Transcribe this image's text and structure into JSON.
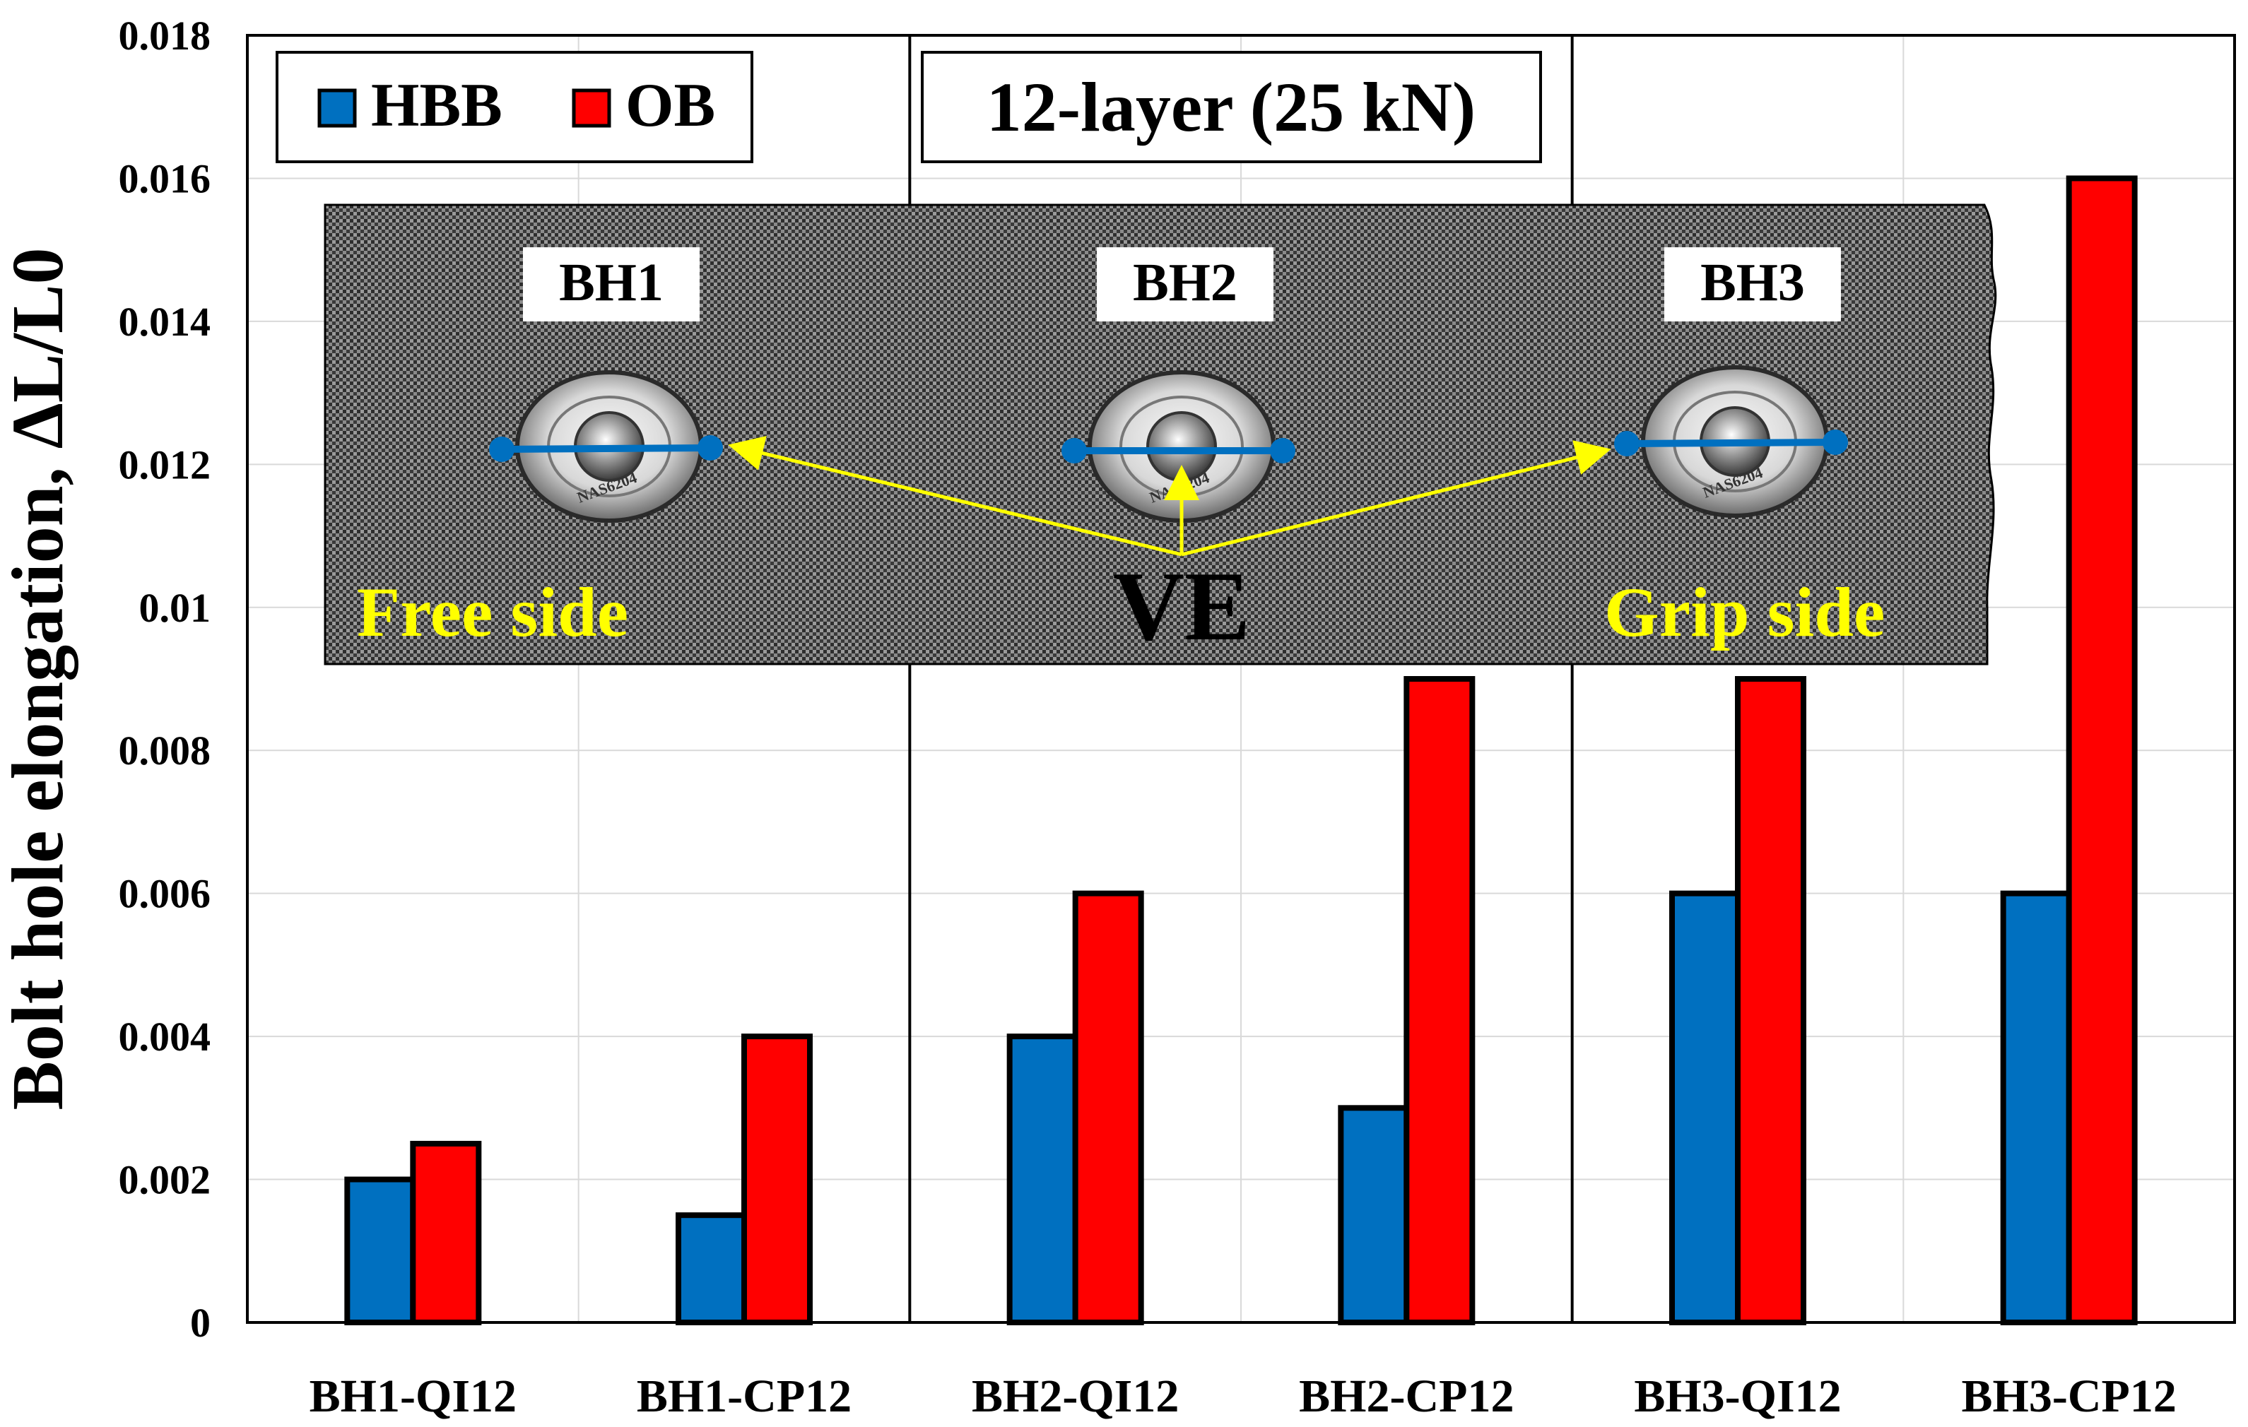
{
  "chart_data": {
    "type": "bar",
    "title": "12-layer (25 kN)",
    "xlabel": "",
    "ylabel": "Bolt hole elongation, ΔL/L0",
    "ylim": [
      0,
      0.018
    ],
    "yticks": [
      "0",
      "0.002",
      "0.004",
      "0.006",
      "0.008",
      "0.01",
      "0.012",
      "0.014",
      "0.016",
      "0.018"
    ],
    "ytick_values": [
      0,
      0.002,
      0.004,
      0.006,
      0.008,
      0.01,
      0.012,
      0.014,
      0.016,
      0.018
    ],
    "grid": true,
    "legend_position": "top-left",
    "categories": [
      "BH1-QI12",
      "BH1-CP12",
      "BH2-QI12",
      "BH2-CP12",
      "BH3-QI12",
      "BH3-CP12"
    ],
    "series": [
      {
        "name": "HBB",
        "color": "#0070C0",
        "values": [
          0.002,
          0.0015,
          0.004,
          0.003,
          0.006,
          0.006
        ]
      },
      {
        "name": "OB",
        "color": "#FF0000",
        "values": [
          0.0025,
          0.004,
          0.006,
          0.009,
          0.009,
          0.016
        ]
      }
    ],
    "inset_photo": {
      "hole_labels": [
        "BH1",
        "BH2",
        "BH3"
      ],
      "bolt_marking": "NAS6204",
      "annotations": {
        "free_side": "Free side",
        "grip_side": "Grip side",
        "ve": "VE"
      },
      "colors": {
        "annotation": "#FFFF00",
        "measure_line": "#0070C0",
        "arrow": "#FFFF00"
      }
    }
  }
}
